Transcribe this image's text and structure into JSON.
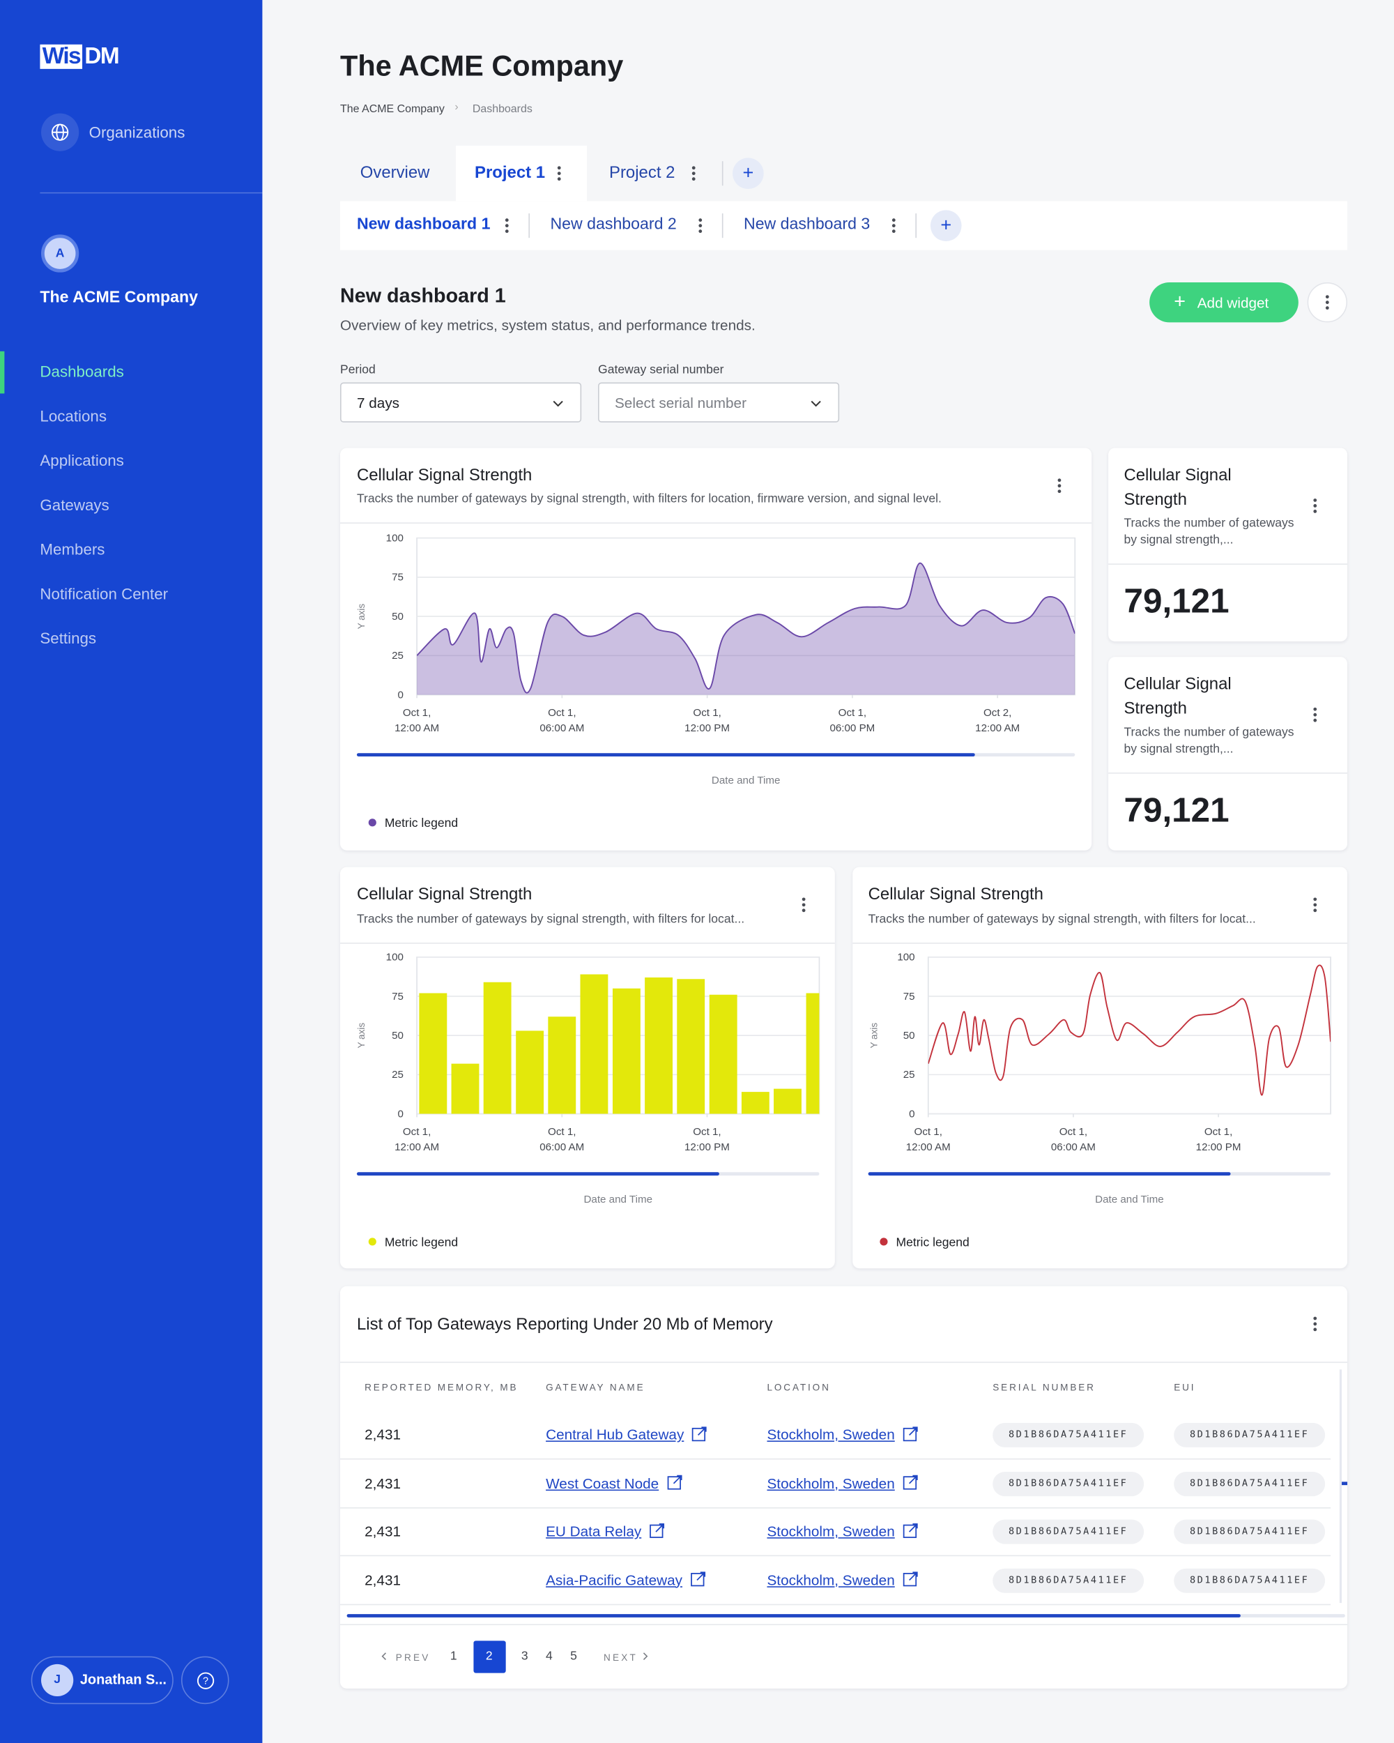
{
  "sidebar": {
    "logo": [
      "Wis",
      "DM"
    ],
    "organizations": "Organizations",
    "avatar": "A",
    "company": "The ACME Company",
    "nav": [
      "Dashboards",
      "Locations",
      "Applications",
      "Gateways",
      "Members",
      "Notification Center",
      "Settings"
    ],
    "active": 0,
    "user_initial": "J",
    "user_name": "Jonathan S..."
  },
  "header": {
    "title": "The ACME Company",
    "breadcrumb": [
      "The ACME Company",
      "Dashboards"
    ],
    "tabs": [
      "Overview",
      "Project 1",
      "Project 2"
    ],
    "active_tab": 1,
    "subtabs": [
      "New dashboard 1",
      "New dashboard 2",
      "New dashboard 3"
    ],
    "active_subtab": 0
  },
  "dashboard": {
    "title": "New dashboard 1",
    "description": "Overview of key metrics, system status, and performance trends.",
    "add_button": "Add widget",
    "filters": [
      {
        "label": "Period",
        "value": "7 days"
      },
      {
        "label": "Gateway serial number",
        "value": "Select serial number"
      }
    ]
  },
  "chart_data": [
    {
      "type": "area",
      "title": "Cellular Signal Strength",
      "subtitle": "Tracks the number of gateways by signal strength, with filters for location, firmware version, and signal level.",
      "ylabel": "Y axis",
      "xlabel": "Date and Time",
      "x": [
        0,
        1.15,
        1.5,
        2.4,
        2.65,
        3,
        3.3,
        3.7,
        4,
        4.3,
        4.7,
        5.4,
        6,
        6.9,
        7.8,
        9.1,
        9.9,
        10.8,
        11.5,
        12.1,
        12.7,
        14,
        14.9,
        15.9,
        17,
        18.1,
        19.1,
        20.2,
        20.8,
        21.6,
        22.5,
        23.4,
        24.4,
        25.3,
        26,
        26.7,
        27.2
      ],
      "series": [
        {
          "name": "Metric legend",
          "color": "#6a48a8",
          "values": [
            25,
            42,
            32,
            52,
            21,
            42,
            30,
            42,
            39,
            9,
            4,
            46,
            50,
            38,
            40,
            52,
            42,
            38,
            23,
            4,
            38,
            51,
            46,
            37,
            46,
            55,
            56,
            57,
            84,
            57,
            44,
            54,
            46,
            49,
            62,
            58,
            39
          ]
        }
      ],
      "xlim": [
        0,
        27.2
      ],
      "ylim": [
        0,
        100
      ],
      "yticks": [
        0,
        25,
        50,
        75,
        100
      ],
      "xticks": [
        {
          "value": 0,
          "label": "Oct 1,\n12:00 AM"
        },
        {
          "value": 6,
          "label": "Oct 1,\n06:00 AM"
        },
        {
          "value": 12,
          "label": "Oct 1,\n12:00 PM"
        },
        {
          "value": 18,
          "label": "Oct 1,\n06:00 PM"
        },
        {
          "value": 24,
          "label": "Oct 2,\n12:00 AM"
        }
      ],
      "grid": true
    },
    {
      "type": "bar",
      "title": "Cellular Signal Strength",
      "subtitle": "Tracks the number of gateways by signal strength, with filters for locat...",
      "ylabel": "Y axis",
      "xlabel": "Date and Time",
      "x": [
        0.67,
        2,
        3.33,
        4.67,
        6,
        7.33,
        8.67,
        10,
        11.33,
        12.67,
        14,
        15.33,
        16.67
      ],
      "series": [
        {
          "name": "Metric legend",
          "color": "#e3e80b",
          "values": [
            77,
            32,
            84,
            53,
            62,
            89,
            80,
            87,
            86,
            76,
            14,
            16,
            77
          ]
        }
      ],
      "xlim": [
        0,
        16.64
      ],
      "ylim": [
        0,
        100
      ],
      "yticks": [
        0,
        25,
        50,
        75,
        100
      ],
      "xticks": [
        {
          "value": 0,
          "label": "Oct 1,\n12:00 AM"
        },
        {
          "value": 6,
          "label": "Oct 1,\n06:00 AM"
        },
        {
          "value": 12,
          "label": "Oct 1,\n12:00 PM"
        }
      ],
      "grid": true
    },
    {
      "type": "line",
      "title": "Cellular Signal Strength",
      "subtitle": "Tracks the number of gateways by signal strength, with filters for locat...",
      "ylabel": "Y axis",
      "xlabel": "Date and Time",
      "x": [
        0,
        0.6,
        0.92,
        1.24,
        1.5,
        1.75,
        1.93,
        2.1,
        2.3,
        2.5,
        2.8,
        3.1,
        3.4,
        3.9,
        4.3,
        5,
        5.6,
        5.9,
        6.4,
        6.7,
        7.1,
        7.4,
        7.8,
        8.2,
        8.9,
        9.6,
        10.3,
        11,
        11.9,
        12.6,
        13.1,
        13.5,
        13.8,
        14.1,
        14.5,
        14.8,
        15.3,
        15.8,
        16.1,
        16.4,
        16.64
      ],
      "series": [
        {
          "name": "Metric legend",
          "color": "#c3323c",
          "values": [
            32,
            58,
            38,
            51,
            65,
            40,
            62,
            44,
            60,
            48,
            26,
            24,
            55,
            60,
            44,
            51,
            60,
            52,
            51,
            76,
            90,
            68,
            47,
            58,
            51,
            43,
            52,
            62,
            64,
            69,
            72,
            44,
            12,
            48,
            55,
            30,
            44,
            76,
            94,
            87,
            46
          ]
        }
      ],
      "xlim": [
        0,
        16.64
      ],
      "ylim": [
        0,
        100
      ],
      "yticks": [
        0,
        25,
        50,
        75,
        100
      ],
      "xticks": [
        {
          "value": 0,
          "label": "Oct 1,\n12:00 AM"
        },
        {
          "value": 6,
          "label": "Oct 1,\n06:00 AM"
        },
        {
          "value": 12,
          "label": "Oct 1,\n12:00 PM"
        }
      ],
      "grid": true
    }
  ],
  "stat_cards": [
    {
      "title": "Cellular Signal Strength",
      "description": "Tracks the number of gateways by signal strength,...",
      "value": "79,121"
    },
    {
      "title": "Cellular Signal Strength",
      "description": "Tracks the number of gateways by signal strength,...",
      "value": "79,121"
    }
  ],
  "table": {
    "title": "List of Top Gateways Reporting Under 20 Mb of Memory",
    "columns": [
      "REPORTED MEMORY, MB",
      "GATEWAY NAME",
      "LOCATION",
      "SERIAL NUMBER",
      "EUI"
    ],
    "rows": [
      [
        "2,431",
        "Central Hub Gateway",
        "Stockholm, Sweden",
        "8D1B86DA75A411EF",
        "8D1B86DA75A411EF"
      ],
      [
        "2,431",
        "West Coast Node",
        "Stockholm, Sweden",
        "8D1B86DA75A411EF",
        "8D1B86DA75A411EF"
      ],
      [
        "2,431",
        "EU Data Relay",
        "Stockholm, Sweden",
        "8D1B86DA75A411EF",
        "8D1B86DA75A411EF"
      ],
      [
        "2,431",
        "Asia-Pacific Gateway",
        "Stockholm, Sweden",
        "8D1B86DA75A411EF",
        "8D1B86DA75A411EF"
      ]
    ]
  },
  "pagination": {
    "prev": "PREV",
    "pages": [
      "1",
      "2",
      "3",
      "4",
      "5"
    ],
    "current": 1,
    "next": "NEXT"
  }
}
